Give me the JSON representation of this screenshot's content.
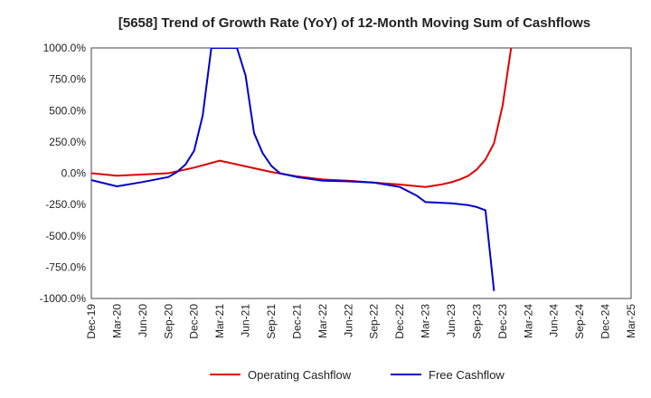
{
  "chart_data": {
    "type": "line",
    "title": "[5658]  Trend of Growth Rate (YoY) of 12-Month Moving Sum of Cashflows",
    "xlabel": "",
    "ylabel": "",
    "ylim": [
      -1000,
      1000
    ],
    "y_ticks": [
      "1000.0%",
      "750.0%",
      "500.0%",
      "250.0%",
      "0.0%",
      "-250.0%",
      "-500.0%",
      "-750.0%",
      "-1000.0%"
    ],
    "y_tick_values": [
      1000,
      750,
      500,
      250,
      0,
      -250,
      -500,
      -750,
      -1000
    ],
    "x_ticks": [
      "Dec-19",
      "Mar-20",
      "Jun-20",
      "Sep-20",
      "Dec-20",
      "Mar-21",
      "Jun-21",
      "Sep-21",
      "Dec-21",
      "Mar-22",
      "Jun-22",
      "Sep-22",
      "Dec-22",
      "Mar-23",
      "Jun-23",
      "Sep-23",
      "Dec-23",
      "Mar-24",
      "Jun-24",
      "Sep-24",
      "Dec-24",
      "Mar-25"
    ],
    "grid": true,
    "legend": "bottom",
    "series": [
      {
        "name": "Operating Cashflow",
        "color": "#e00000",
        "points": [
          [
            "Dec-19",
            0
          ],
          [
            "Mar-20",
            -20
          ],
          [
            "Jun-20",
            -10
          ],
          [
            "Sep-20",
            0
          ],
          [
            "Dec-20",
            45
          ],
          [
            "Mar-21",
            100
          ],
          [
            "Jun-21",
            55
          ],
          [
            "Sep-21",
            10
          ],
          [
            "Dec-21",
            -25
          ],
          [
            "Mar-22",
            -50
          ],
          [
            "Jun-22",
            -60
          ],
          [
            "Sep-22",
            -75
          ],
          [
            "Dec-22",
            -90
          ],
          [
            "Mar-23",
            -110
          ],
          [
            "Apr-23",
            -100
          ],
          [
            "May-23",
            -88
          ],
          [
            "Jun-23",
            -72
          ],
          [
            "Jul-23",
            -50
          ],
          [
            "Aug-23",
            -20
          ],
          [
            "Sep-23",
            30
          ],
          [
            "Oct-23",
            110
          ],
          [
            "Nov-23",
            240
          ],
          [
            "Dec-23",
            540
          ],
          [
            "Jan-24",
            1000
          ]
        ]
      },
      {
        "name": "Free Cashflow",
        "color": "#0000cc",
        "points": [
          [
            "Dec-19",
            -55
          ],
          [
            "Mar-20",
            -105
          ],
          [
            "Jun-20",
            -70
          ],
          [
            "Sep-20",
            -30
          ],
          [
            "Oct-20",
            10
          ],
          [
            "Nov-20",
            70
          ],
          [
            "Dec-20",
            180
          ],
          [
            "Jan-21",
            460
          ],
          [
            "Feb-21",
            1000
          ],
          [
            "May-21",
            1000
          ],
          [
            "Jun-21",
            780
          ],
          [
            "Jul-21",
            320
          ],
          [
            "Aug-21",
            160
          ],
          [
            "Sep-21",
            60
          ],
          [
            "Oct-21",
            0
          ],
          [
            "Dec-21",
            -30
          ],
          [
            "Mar-22",
            -60
          ],
          [
            "Jun-22",
            -65
          ],
          [
            "Sep-22",
            -75
          ],
          [
            "Dec-22",
            -110
          ],
          [
            "Feb-23",
            -180
          ],
          [
            "Mar-23",
            -230
          ],
          [
            "Jun-23",
            -240
          ],
          [
            "Aug-23",
            -255
          ],
          [
            "Sep-23",
            -270
          ],
          [
            "Oct-23",
            -295
          ],
          [
            "Nov-23",
            -940
          ]
        ]
      }
    ]
  }
}
